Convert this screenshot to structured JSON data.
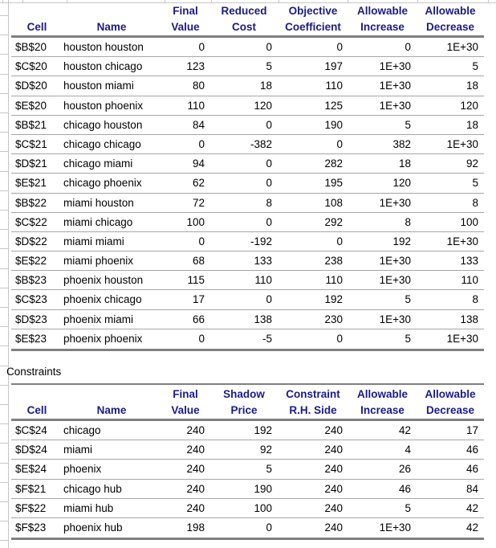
{
  "tables": {
    "variable_cells": {
      "header_top": [
        "Final",
        "Reduced",
        "Objective",
        "Allowable",
        "Allowable"
      ],
      "header_bottom": [
        "Cell",
        "Name",
        "Value",
        "Cost",
        "Coefficient",
        "Increase",
        "Decrease"
      ],
      "rows": [
        [
          "$B$20",
          "houston houston",
          "0",
          "0",
          "0",
          "0",
          "1E+30"
        ],
        [
          "$C$20",
          "houston chicago",
          "123",
          "5",
          "197",
          "1E+30",
          "5"
        ],
        [
          "$D$20",
          "houston miami",
          "80",
          "18",
          "110",
          "1E+30",
          "18"
        ],
        [
          "$E$20",
          "houston phoenix",
          "110",
          "120",
          "125",
          "1E+30",
          "120"
        ],
        [
          "$B$21",
          "chicago houston",
          "84",
          "0",
          "190",
          "5",
          "18"
        ],
        [
          "$C$21",
          "chicago chicago",
          "0",
          "-382",
          "0",
          "382",
          "1E+30"
        ],
        [
          "$D$21",
          "chicago miami",
          "94",
          "0",
          "282",
          "18",
          "92"
        ],
        [
          "$E$21",
          "chicago phoenix",
          "62",
          "0",
          "195",
          "120",
          "5"
        ],
        [
          "$B$22",
          "miami houston",
          "72",
          "8",
          "108",
          "1E+30",
          "8"
        ],
        [
          "$C$22",
          "miami chicago",
          "100",
          "0",
          "292",
          "8",
          "100"
        ],
        [
          "$D$22",
          "miami miami",
          "0",
          "-192",
          "0",
          "192",
          "1E+30"
        ],
        [
          "$E$22",
          "miami phoenix",
          "68",
          "133",
          "238",
          "1E+30",
          "133"
        ],
        [
          "$B$23",
          "phoenix houston",
          "115",
          "110",
          "110",
          "1E+30",
          "110"
        ],
        [
          "$C$23",
          "phoenix chicago",
          "17",
          "0",
          "192",
          "5",
          "8"
        ],
        [
          "$D$23",
          "phoenix miami",
          "66",
          "138",
          "230",
          "1E+30",
          "138"
        ],
        [
          "$E$23",
          "phoenix phoenix",
          "0",
          "-5",
          "0",
          "5",
          "1E+30"
        ]
      ]
    },
    "constraints": {
      "section_label": "Constraints",
      "header_top": [
        "Final",
        "Shadow",
        "Constraint",
        "Allowable",
        "Allowable"
      ],
      "header_bottom": [
        "Cell",
        "Name",
        "Value",
        "Price",
        "R.H. Side",
        "Increase",
        "Decrease"
      ],
      "rows": [
        [
          "$C$24",
          "chicago",
          "240",
          "192",
          "240",
          "42",
          "17"
        ],
        [
          "$D$24",
          "miami",
          "240",
          "92",
          "240",
          "4",
          "46"
        ],
        [
          "$E$24",
          "phoenix",
          "240",
          "5",
          "240",
          "26",
          "46"
        ],
        [
          "$F$21",
          "chicago hub",
          "240",
          "190",
          "240",
          "46",
          "84"
        ],
        [
          "$F$22",
          "miami hub",
          "240",
          "100",
          "240",
          "5",
          "42"
        ],
        [
          "$F$23",
          "phoenix hub",
          "198",
          "0",
          "240",
          "1E+30",
          "42"
        ]
      ]
    }
  },
  "colors": {
    "header_text": "#1A1A8C",
    "body_text": "#000000",
    "thick_border": "#808080",
    "thin_border": "#A6A6A6",
    "gridline": "#C6C6C6"
  }
}
